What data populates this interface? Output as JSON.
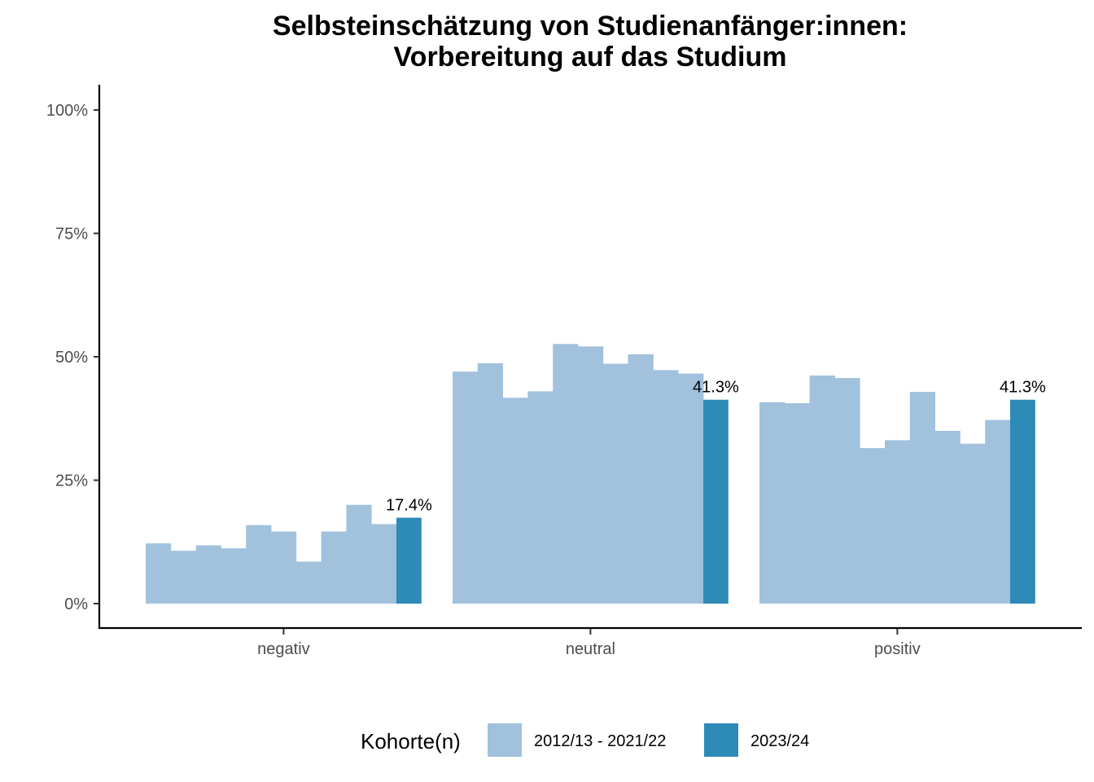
{
  "chart_data": {
    "type": "bar",
    "title": [
      "Selbsteinschätzung von Studienanfänger:innen:",
      "Vorbereitung auf das Studium"
    ],
    "xlabel": "",
    "ylabel": "",
    "categories": [
      "negativ",
      "neutral",
      "positiv"
    ],
    "ylim": [
      0,
      1.05
    ],
    "y_ticks": [
      {
        "value": 0,
        "label": "0%"
      },
      {
        "value": 0.25,
        "label": "25%"
      },
      {
        "value": 0.5,
        "label": "50%"
      },
      {
        "value": 0.75,
        "label": "75%"
      },
      {
        "value": 1.0,
        "label": "100%"
      }
    ],
    "series": [
      {
        "name": "2012/13 - 2021/22",
        "color": "#a1c1dd",
        "values_per_category": [
          [
            0.122,
            0.107,
            0.118,
            0.112,
            0.159,
            0.146,
            0.085,
            0.146,
            0.2,
            0.161
          ],
          [
            0.47,
            0.487,
            0.417,
            0.43,
            0.526,
            0.521,
            0.486,
            0.505,
            0.473,
            0.466
          ],
          [
            0.408,
            0.406,
            0.462,
            0.457,
            0.315,
            0.331,
            0.429,
            0.35,
            0.324,
            0.372
          ]
        ]
      },
      {
        "name": "2023/24",
        "color": "#2e8ab7",
        "values": [
          0.174,
          0.413,
          0.413
        ],
        "labels": [
          "17.4%",
          "41.3%",
          "41.3%"
        ]
      }
    ],
    "legend": {
      "title": "Kohorte(n)",
      "position": "bottom"
    },
    "grid": false
  }
}
